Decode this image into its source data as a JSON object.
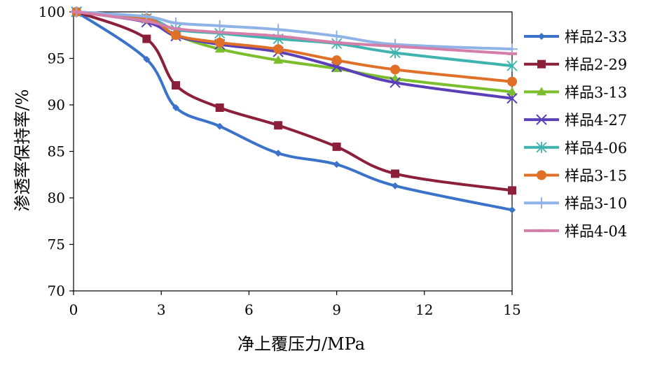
{
  "chart_data": {
    "type": "line",
    "title": "",
    "xlabel": "净上覆压力/MPa",
    "ylabel": "渗透率保持率/%",
    "xlim": [
      0,
      15
    ],
    "ylim": [
      70,
      100
    ],
    "xticks": [
      0,
      3,
      6,
      9,
      12,
      15
    ],
    "yticks": [
      70,
      75,
      80,
      85,
      90,
      95,
      100
    ],
    "grid": false,
    "legend_position": "right",
    "series": [
      {
        "name": "样品2-33",
        "color": "#3a73c9",
        "marker": "diamond",
        "x": [
          0.1,
          2.5,
          3.5,
          5,
          7,
          9,
          11,
          15
        ],
        "y": [
          100,
          94.9,
          89.7,
          87.7,
          84.8,
          83.6,
          81.3,
          78.7
        ]
      },
      {
        "name": "样品2-29",
        "color": "#8c1f3a",
        "marker": "square",
        "x": [
          0.1,
          2.5,
          3.5,
          5,
          7,
          9,
          11,
          15
        ],
        "y": [
          100,
          97.1,
          92.1,
          89.7,
          87.8,
          85.5,
          82.6,
          80.8
        ]
      },
      {
        "name": "样品3-13",
        "color": "#7bbf2f",
        "marker": "triangle",
        "x": [
          0.1,
          2.5,
          3.5,
          5,
          7,
          9,
          11,
          15
        ],
        "y": [
          100,
          99.3,
          97.5,
          96.0,
          94.8,
          93.9,
          92.8,
          91.4
        ]
      },
      {
        "name": "样品4-27",
        "color": "#5a3fb8",
        "marker": "x",
        "x": [
          0.1,
          2.5,
          3.5,
          5,
          7,
          9,
          11,
          15
        ],
        "y": [
          100,
          98.9,
          97.4,
          96.5,
          95.7,
          94.1,
          92.4,
          90.7
        ]
      },
      {
        "name": "样品4-06",
        "color": "#3fb3b0",
        "marker": "asterisk",
        "x": [
          0.1,
          2.5,
          3.5,
          5,
          7,
          9,
          11,
          15
        ],
        "y": [
          100,
          99.3,
          98.1,
          97.7,
          97.1,
          96.6,
          95.6,
          94.2
        ]
      },
      {
        "name": "样品3-15",
        "color": "#e07028",
        "marker": "circle",
        "x": [
          0.1,
          2.5,
          3.5,
          5,
          7,
          9,
          11,
          15
        ],
        "y": [
          100,
          99.3,
          97.5,
          96.7,
          96.0,
          94.8,
          93.8,
          92.5
        ]
      },
      {
        "name": "样品3-10",
        "color": "#8fb3e6",
        "marker": "plus",
        "x": [
          0.1,
          2.5,
          3.5,
          5,
          7,
          9,
          11,
          15
        ],
        "y": [
          100,
          99.5,
          98.8,
          98.5,
          98.1,
          97.4,
          96.5,
          96.0
        ]
      },
      {
        "name": "样品4-04",
        "color": "#d37fa9",
        "marker": "dash",
        "x": [
          0.1,
          2.5,
          3.5,
          5,
          7,
          9,
          11,
          15
        ],
        "y": [
          100,
          99.0,
          98.2,
          97.8,
          97.4,
          96.7,
          96.3,
          95.5
        ]
      }
    ]
  }
}
